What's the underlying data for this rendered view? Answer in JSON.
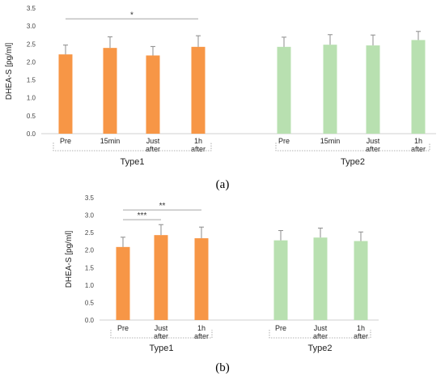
{
  "chart_data": [
    {
      "type": "bar",
      "panel_label": "(a)",
      "ylabel": "DHEA-S [pg/ml]",
      "ylim": [
        0,
        3.5
      ],
      "yticks": [
        "0.0",
        "0.5",
        "1.0",
        "1.5",
        "2.0",
        "2.5",
        "3.0",
        "3.5"
      ],
      "grid": false,
      "groups": [
        {
          "name": "Type1",
          "color": "#f79646",
          "categories": [
            [
              "Pre"
            ],
            [
              "15min"
            ],
            [
              "Just",
              "after"
            ],
            [
              "1h",
              "after"
            ]
          ],
          "values": [
            2.21,
            2.39,
            2.18,
            2.42
          ],
          "errors": [
            0.26,
            0.31,
            0.25,
            0.31
          ]
        },
        {
          "name": "Type2",
          "color": "#b8e0b0",
          "categories": [
            [
              "Pre"
            ],
            [
              "15min"
            ],
            [
              "Just",
              "after"
            ],
            [
              "1h",
              "after"
            ]
          ],
          "values": [
            2.42,
            2.48,
            2.46,
            2.61
          ],
          "errors": [
            0.27,
            0.28,
            0.29,
            0.24
          ]
        }
      ],
      "significance": [
        {
          "group": 0,
          "from": 0,
          "to": 3,
          "y": 3.2,
          "label": "*"
        }
      ]
    },
    {
      "type": "bar",
      "panel_label": "(b)",
      "ylabel": "DHEA-S [pg/ml]",
      "ylim": [
        0,
        3.5
      ],
      "yticks": [
        "0.0",
        "0.5",
        "1.0",
        "1.5",
        "2.0",
        "2.5",
        "3.0",
        "3.5"
      ],
      "grid": false,
      "groups": [
        {
          "name": "Type1",
          "color": "#f79646",
          "categories": [
            [
              "Pre"
            ],
            [
              "Just",
              "after"
            ],
            [
              "1h",
              "after"
            ]
          ],
          "values": [
            2.09,
            2.43,
            2.34
          ],
          "errors": [
            0.28,
            0.3,
            0.32
          ]
        },
        {
          "name": "Type2",
          "color": "#b8e0b0",
          "categories": [
            [
              "Pre"
            ],
            [
              "Just",
              "after"
            ],
            [
              "1h",
              "after"
            ]
          ],
          "values": [
            2.28,
            2.36,
            2.26
          ],
          "errors": [
            0.28,
            0.27,
            0.26
          ]
        }
      ],
      "significance": [
        {
          "group": 0,
          "from": 0,
          "to": 1,
          "y": 2.87,
          "label": "***"
        },
        {
          "group": 0,
          "from": 0,
          "to": 2,
          "y": 3.15,
          "label": "**"
        }
      ]
    }
  ]
}
